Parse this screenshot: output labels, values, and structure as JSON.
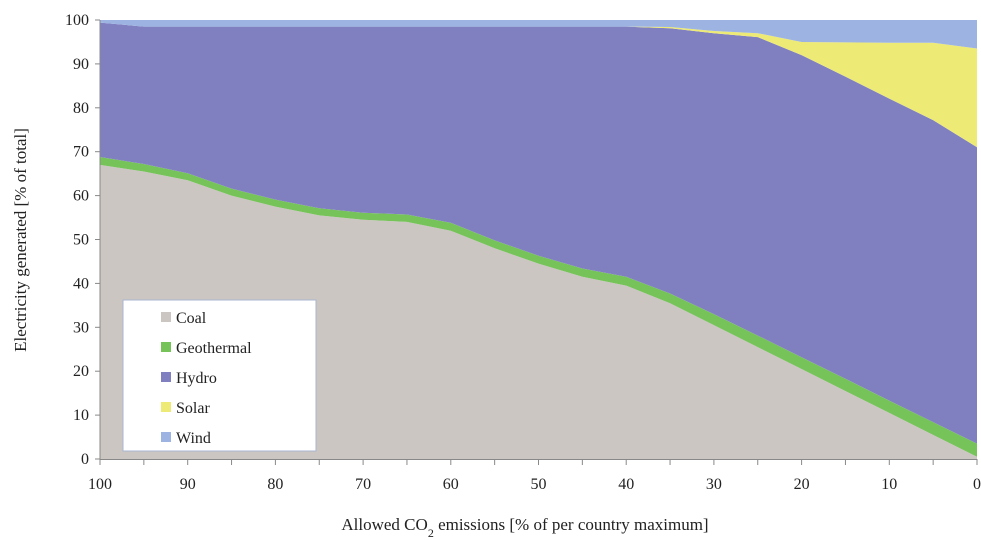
{
  "chart_data": {
    "type": "area",
    "stacked": true,
    "xlabel": "Allowed CO2 emissions [% of per country maximum]",
    "ylabel": "Electricity generated [% of total]",
    "xlim": [
      100,
      0
    ],
    "ylim": [
      0,
      100
    ],
    "x_ticks": [
      "100",
      "90",
      "80",
      "70",
      "60",
      "50",
      "40",
      "30",
      "20",
      "10",
      "0"
    ],
    "y_ticks": [
      "0",
      "10",
      "20",
      "30",
      "40",
      "50",
      "60",
      "70",
      "80",
      "90",
      "100"
    ],
    "x": [
      100,
      95,
      90,
      85,
      80,
      75,
      70,
      65,
      60,
      55,
      50,
      45,
      40,
      35,
      30,
      25,
      20,
      15,
      10,
      5,
      0
    ],
    "series": [
      {
        "name": "Coal",
        "color": "#cbc6c2",
        "values": [
          67,
          65.5,
          63.5,
          60,
          57.5,
          55.5,
          54.5,
          54,
          52,
          48,
          44.5,
          41.5,
          39.5,
          35.5,
          30.5,
          25.5,
          20.5,
          15.5,
          10.5,
          5.5,
          0.5
        ]
      },
      {
        "name": "Geothermal",
        "color": "#76c35a",
        "values": [
          1.8,
          1.7,
          1.6,
          1.6,
          1.6,
          1.6,
          1.6,
          1.7,
          1.8,
          1.8,
          1.8,
          1.9,
          2.0,
          2.2,
          2.5,
          2.6,
          2.7,
          2.8,
          2.8,
          2.9,
          3.0
        ]
      },
      {
        "name": "Hydro",
        "color": "#8080c0",
        "values": [
          30.6,
          31.3,
          33.4,
          36.9,
          39.4,
          41.4,
          42.4,
          42.8,
          44.7,
          48.7,
          52.2,
          55.1,
          57.0,
          60.4,
          64.0,
          68.0,
          68.8,
          68.8,
          68.8,
          68.8,
          67.5
        ]
      },
      {
        "name": "Solar",
        "color": "#eeea76",
        "values": [
          0,
          0,
          0,
          0,
          0,
          0,
          0,
          0,
          0,
          0,
          0,
          0,
          0,
          0.3,
          0.5,
          0.9,
          3.0,
          7.8,
          12.7,
          17.6,
          22.5
        ]
      },
      {
        "name": "Wind",
        "color": "#9db4e2",
        "values": [
          0.6,
          1.5,
          1.5,
          1.5,
          1.5,
          1.5,
          1.5,
          1.5,
          1.5,
          1.5,
          1.5,
          1.5,
          1.5,
          1.6,
          2.5,
          3.0,
          5.0,
          5.1,
          5.2,
          5.2,
          6.5
        ]
      }
    ],
    "legend": {
      "position": "bottom-left"
    },
    "grid": false
  }
}
